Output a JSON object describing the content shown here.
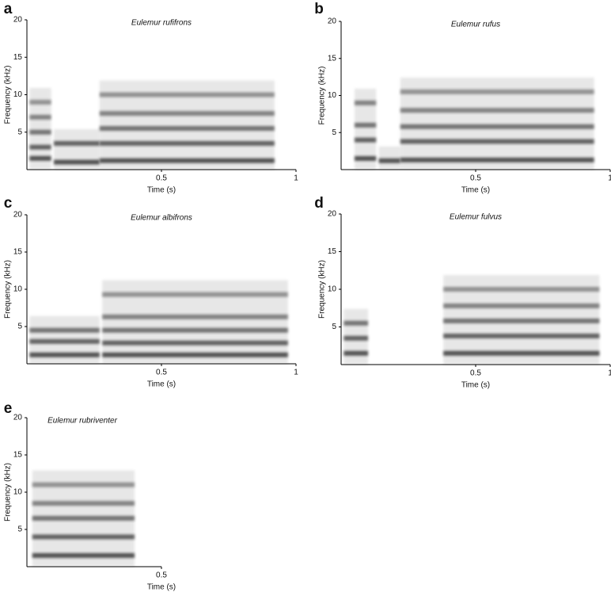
{
  "chart_data": [
    {
      "type": "spectrogram",
      "panel": "a",
      "title": "Eulemur rufifrons",
      "xlabel": "Time (s)",
      "ylabel": "Frequency (kHz)",
      "xlim": [
        0,
        1
      ],
      "ylim": [
        0,
        20
      ],
      "xticks": [
        0.5,
        1
      ],
      "yticks": [
        5,
        10,
        15,
        20
      ],
      "segments": [
        {
          "x": [
            0.01,
            0.09
          ],
          "harmonics": [
            1.5,
            3,
            5,
            7,
            9
          ]
        },
        {
          "x": [
            0.1,
            0.27
          ],
          "harmonics": [
            1,
            3.5
          ]
        },
        {
          "x": [
            0.27,
            0.92
          ],
          "harmonics": [
            1.2,
            3.5,
            5.5,
            7.5,
            10
          ]
        }
      ]
    },
    {
      "type": "spectrogram",
      "panel": "b",
      "title": "Eulemur rufus",
      "xlabel": "Time (s)",
      "ylabel": "Frequency (kHz)",
      "xlim": [
        0,
        1
      ],
      "ylim": [
        0,
        20
      ],
      "xticks": [
        0.5,
        1
      ],
      "yticks": [
        5,
        10,
        15,
        20
      ],
      "segments": [
        {
          "x": [
            0.05,
            0.13
          ],
          "harmonics": [
            1.5,
            4,
            6,
            9
          ]
        },
        {
          "x": [
            0.14,
            0.22
          ],
          "harmonics": [
            1.2
          ]
        },
        {
          "x": [
            0.22,
            0.94
          ],
          "harmonics": [
            1.3,
            3.8,
            5.8,
            8,
            10.5
          ]
        }
      ]
    },
    {
      "type": "spectrogram",
      "panel": "c",
      "title": "Eulemur albifrons",
      "xlabel": "Time (s)",
      "ylabel": "Frequency (kHz)",
      "xlim": [
        0,
        1
      ],
      "ylim": [
        0,
        20
      ],
      "xticks": [
        0.5,
        1
      ],
      "yticks": [
        5,
        10,
        15,
        20
      ],
      "segments": [
        {
          "x": [
            0.01,
            0.27
          ],
          "harmonics": [
            1.2,
            3,
            4.5
          ]
        },
        {
          "x": [
            0.28,
            0.97
          ],
          "harmonics": [
            1.2,
            2.8,
            4.5,
            6.3,
            9.3
          ]
        }
      ]
    },
    {
      "type": "spectrogram",
      "panel": "d",
      "title": "Eulemur fulvus",
      "xlabel": "Time (s)",
      "ylabel": "Frequency (kHz)",
      "xlim": [
        0,
        1
      ],
      "ylim": [
        0,
        20
      ],
      "xticks": [
        0.5,
        1
      ],
      "yticks": [
        5,
        10,
        15,
        20
      ],
      "segments": [
        {
          "x": [
            0.01,
            0.1
          ],
          "harmonics": [
            1.5,
            3.5,
            5.5
          ]
        },
        {
          "x": [
            0.38,
            0.96
          ],
          "harmonics": [
            1.5,
            3.8,
            5.8,
            7.8,
            10
          ]
        }
      ]
    },
    {
      "type": "spectrogram",
      "panel": "e",
      "title": "Eulemur rubriventer",
      "xlabel": "Time (s)",
      "ylabel": "Frequency (kHz)",
      "xlim": [
        0,
        0.5
      ],
      "ylim": [
        0,
        20
      ],
      "xticks": [
        0.5
      ],
      "yticks": [
        5,
        10,
        15,
        20
      ],
      "segments": [
        {
          "x": [
            0.02,
            0.4
          ],
          "harmonics": [
            1.5,
            4,
            6.5,
            8.5,
            11
          ]
        }
      ]
    }
  ]
}
